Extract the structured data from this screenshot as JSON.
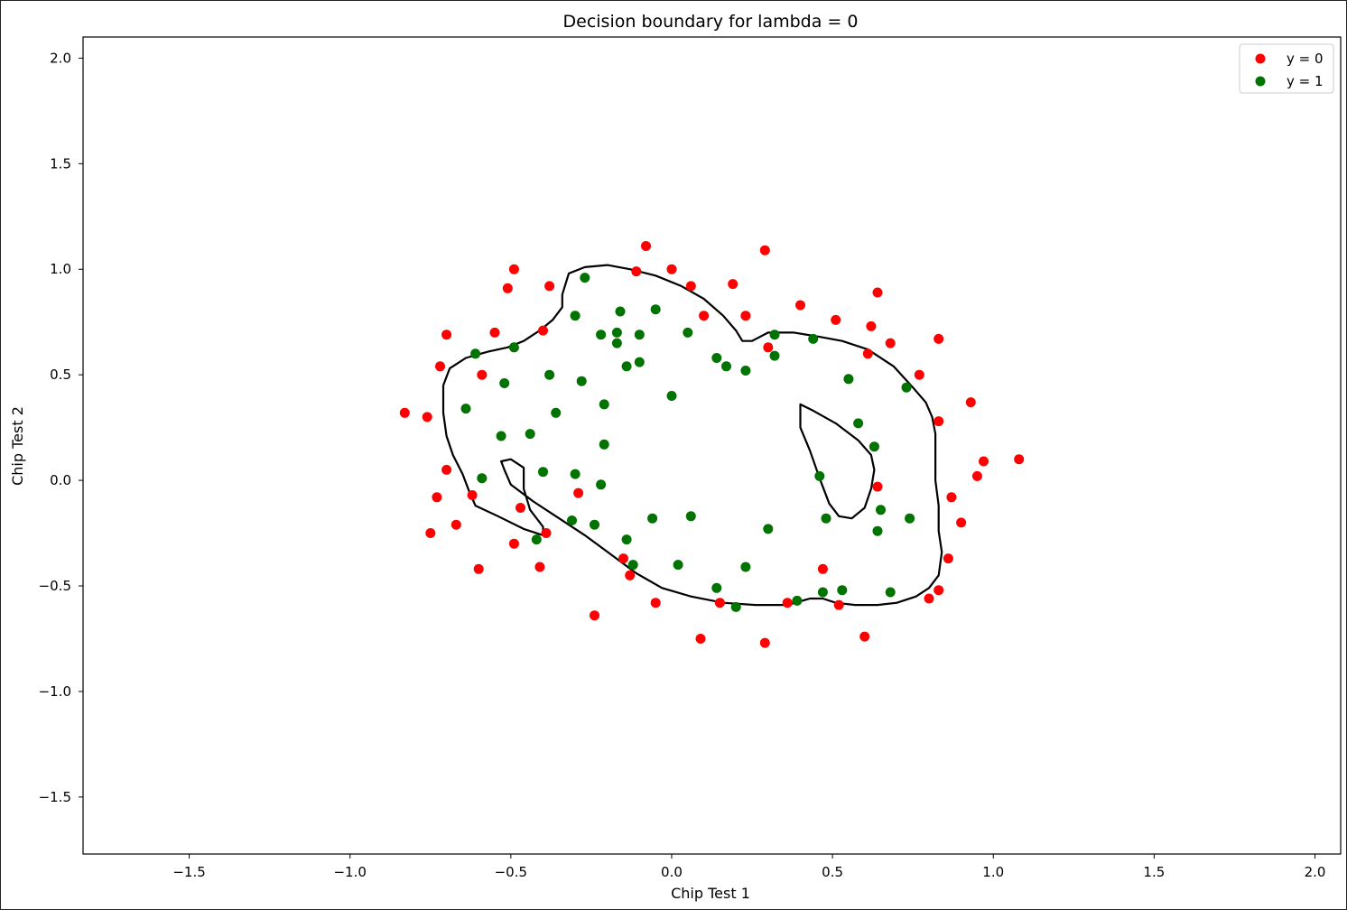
{
  "chart_data": {
    "type": "scatter",
    "title": "Decision boundary for lambda = 0",
    "xlabel": "Chip Test 1",
    "ylabel": "Chip Test 2",
    "xlim": [
      -1.83,
      2.08
    ],
    "ylim": [
      -1.77,
      2.1
    ],
    "xticks": [
      -1.5,
      -1.0,
      -0.5,
      0.0,
      0.5,
      1.0,
      1.5,
      2.0
    ],
    "xtick_labels": [
      "−1.5",
      "−1.0",
      "−0.5",
      "0.0",
      "0.5",
      "1.0",
      "1.5",
      "2.0"
    ],
    "yticks": [
      -1.5,
      -1.0,
      -0.5,
      0.0,
      0.5,
      1.0,
      1.5,
      2.0
    ],
    "ytick_labels": [
      "−1.5",
      "−1.0",
      "−0.5",
      "0.0",
      "0.5",
      "1.0",
      "1.5",
      "2.0"
    ],
    "grid": false,
    "legend_position": "top-right",
    "series": [
      {
        "name": "y = 0",
        "color": "#ff0000",
        "points": [
          [
            -0.08,
            1.11
          ],
          [
            0.29,
            1.09
          ],
          [
            -0.49,
            1.0
          ],
          [
            -0.11,
            0.99
          ],
          [
            0.0,
            1.0
          ],
          [
            -0.51,
            0.91
          ],
          [
            -0.38,
            0.92
          ],
          [
            0.06,
            0.92
          ],
          [
            0.19,
            0.93
          ],
          [
            0.64,
            0.89
          ],
          [
            0.4,
            0.83
          ],
          [
            0.1,
            0.78
          ],
          [
            0.23,
            0.78
          ],
          [
            0.51,
            0.76
          ],
          [
            0.62,
            0.73
          ],
          [
            -0.55,
            0.7
          ],
          [
            -0.4,
            0.71
          ],
          [
            -0.7,
            0.69
          ],
          [
            0.83,
            0.67
          ],
          [
            0.68,
            0.65
          ],
          [
            0.3,
            0.63
          ],
          [
            0.61,
            0.6
          ],
          [
            -0.72,
            0.54
          ],
          [
            -0.59,
            0.5
          ],
          [
            0.77,
            0.5
          ],
          [
            0.93,
            0.37
          ],
          [
            -0.83,
            0.32
          ],
          [
            -0.76,
            0.3
          ],
          [
            0.83,
            0.28
          ],
          [
            1.08,
            0.1
          ],
          [
            0.97,
            0.09
          ],
          [
            -0.7,
            0.05
          ],
          [
            0.95,
            0.02
          ],
          [
            0.64,
            -0.03
          ],
          [
            -0.29,
            -0.06
          ],
          [
            -0.62,
            -0.07
          ],
          [
            -0.73,
            -0.08
          ],
          [
            0.87,
            -0.08
          ],
          [
            -0.47,
            -0.13
          ],
          [
            -0.67,
            -0.21
          ],
          [
            0.9,
            -0.2
          ],
          [
            -0.75,
            -0.25
          ],
          [
            -0.39,
            -0.25
          ],
          [
            -0.49,
            -0.3
          ],
          [
            -0.6,
            -0.42
          ],
          [
            -0.41,
            -0.41
          ],
          [
            0.86,
            -0.37
          ],
          [
            -0.15,
            -0.37
          ],
          [
            0.47,
            -0.42
          ],
          [
            -0.13,
            -0.45
          ],
          [
            0.83,
            -0.52
          ],
          [
            0.8,
            -0.56
          ],
          [
            -0.05,
            -0.58
          ],
          [
            0.15,
            -0.58
          ],
          [
            0.36,
            -0.58
          ],
          [
            0.52,
            -0.59
          ],
          [
            -0.24,
            -0.64
          ],
          [
            0.6,
            -0.74
          ],
          [
            0.09,
            -0.75
          ],
          [
            0.29,
            -0.77
          ]
        ]
      },
      {
        "name": "y = 1",
        "color": "#007300",
        "points": [
          [
            -0.27,
            0.96
          ],
          [
            -0.05,
            0.81
          ],
          [
            -0.16,
            0.8
          ],
          [
            -0.3,
            0.78
          ],
          [
            0.05,
            0.7
          ],
          [
            -0.22,
            0.69
          ],
          [
            -0.17,
            0.7
          ],
          [
            -0.1,
            0.69
          ],
          [
            0.32,
            0.69
          ],
          [
            0.44,
            0.67
          ],
          [
            -0.17,
            0.65
          ],
          [
            -0.49,
            0.63
          ],
          [
            -0.61,
            0.6
          ],
          [
            0.32,
            0.59
          ],
          [
            0.14,
            0.58
          ],
          [
            -0.1,
            0.56
          ],
          [
            -0.14,
            0.54
          ],
          [
            0.17,
            0.54
          ],
          [
            0.23,
            0.52
          ],
          [
            -0.38,
            0.5
          ],
          [
            0.55,
            0.48
          ],
          [
            -0.28,
            0.47
          ],
          [
            -0.52,
            0.46
          ],
          [
            0.73,
            0.44
          ],
          [
            0.0,
            0.4
          ],
          [
            -0.21,
            0.36
          ],
          [
            -0.64,
            0.34
          ],
          [
            -0.36,
            0.32
          ],
          [
            0.58,
            0.27
          ],
          [
            -0.44,
            0.22
          ],
          [
            -0.53,
            0.21
          ],
          [
            -0.21,
            0.17
          ],
          [
            0.63,
            0.16
          ],
          [
            -0.4,
            0.04
          ],
          [
            -0.3,
            0.03
          ],
          [
            -0.59,
            0.01
          ],
          [
            0.46,
            0.02
          ],
          [
            -0.22,
            -0.02
          ],
          [
            0.65,
            -0.14
          ],
          [
            0.06,
            -0.17
          ],
          [
            -0.06,
            -0.18
          ],
          [
            0.48,
            -0.18
          ],
          [
            0.74,
            -0.18
          ],
          [
            -0.31,
            -0.19
          ],
          [
            -0.24,
            -0.21
          ],
          [
            0.3,
            -0.23
          ],
          [
            0.64,
            -0.24
          ],
          [
            -0.42,
            -0.28
          ],
          [
            -0.14,
            -0.28
          ],
          [
            0.02,
            -0.4
          ],
          [
            -0.12,
            -0.4
          ],
          [
            0.23,
            -0.41
          ],
          [
            0.14,
            -0.51
          ],
          [
            0.53,
            -0.52
          ],
          [
            0.47,
            -0.53
          ],
          [
            0.68,
            -0.53
          ],
          [
            0.39,
            -0.57
          ],
          [
            0.2,
            -0.6
          ]
        ]
      }
    ],
    "boundary": {
      "color": "#000000",
      "outer": [
        [
          -0.34,
          0.88
        ],
        [
          -0.32,
          0.98
        ],
        [
          -0.27,
          1.01
        ],
        [
          -0.2,
          1.02
        ],
        [
          -0.13,
          1.0
        ],
        [
          -0.05,
          0.97
        ],
        [
          0.03,
          0.92
        ],
        [
          0.1,
          0.86
        ],
        [
          0.16,
          0.78
        ],
        [
          0.2,
          0.71
        ],
        [
          0.22,
          0.66
        ],
        [
          0.25,
          0.66
        ],
        [
          0.3,
          0.7
        ],
        [
          0.38,
          0.7
        ],
        [
          0.46,
          0.68
        ],
        [
          0.53,
          0.66
        ],
        [
          0.61,
          0.62
        ],
        [
          0.69,
          0.54
        ],
        [
          0.75,
          0.44
        ],
        [
          0.79,
          0.37
        ],
        [
          0.81,
          0.3
        ],
        [
          0.82,
          0.22
        ],
        [
          0.82,
          0.12
        ],
        [
          0.82,
          0.0
        ],
        [
          0.83,
          -0.12
        ],
        [
          0.83,
          -0.24
        ],
        [
          0.84,
          -0.34
        ],
        [
          0.83,
          -0.45
        ],
        [
          0.8,
          -0.51
        ],
        [
          0.76,
          -0.55
        ],
        [
          0.7,
          -0.58
        ],
        [
          0.64,
          -0.59
        ],
        [
          0.57,
          -0.59
        ],
        [
          0.51,
          -0.58
        ],
        [
          0.47,
          -0.56
        ],
        [
          0.43,
          -0.56
        ],
        [
          0.36,
          -0.59
        ],
        [
          0.26,
          -0.59
        ],
        [
          0.16,
          -0.58
        ],
        [
          0.06,
          -0.55
        ],
        [
          -0.03,
          -0.51
        ],
        [
          -0.11,
          -0.44
        ],
        [
          -0.19,
          -0.35
        ],
        [
          -0.27,
          -0.26
        ],
        [
          -0.35,
          -0.18
        ],
        [
          -0.43,
          -0.1
        ],
        [
          -0.5,
          -0.02
        ],
        [
          -0.52,
          0.05
        ],
        [
          -0.53,
          0.09
        ],
        [
          -0.5,
          0.1
        ],
        [
          -0.46,
          0.06
        ],
        [
          -0.46,
          -0.04
        ],
        [
          -0.44,
          -0.14
        ],
        [
          -0.4,
          -0.22
        ],
        [
          -0.4,
          -0.26
        ],
        [
          -0.46,
          -0.23
        ],
        [
          -0.54,
          -0.17
        ],
        [
          -0.61,
          -0.12
        ],
        [
          -0.63,
          -0.05
        ],
        [
          -0.65,
          0.03
        ],
        [
          -0.68,
          0.12
        ],
        [
          -0.7,
          0.21
        ],
        [
          -0.71,
          0.32
        ],
        [
          -0.71,
          0.45
        ],
        [
          -0.69,
          0.53
        ],
        [
          -0.64,
          0.58
        ],
        [
          -0.57,
          0.61
        ],
        [
          -0.51,
          0.63
        ],
        [
          -0.46,
          0.66
        ],
        [
          -0.41,
          0.71
        ],
        [
          -0.37,
          0.76
        ],
        [
          -0.34,
          0.82
        ],
        [
          -0.34,
          0.88
        ]
      ],
      "inner": [
        [
          0.4,
          0.36
        ],
        [
          0.44,
          0.33
        ],
        [
          0.51,
          0.27
        ],
        [
          0.58,
          0.19
        ],
        [
          0.62,
          0.12
        ],
        [
          0.63,
          0.05
        ],
        [
          0.62,
          -0.04
        ],
        [
          0.6,
          -0.13
        ],
        [
          0.56,
          -0.18
        ],
        [
          0.52,
          -0.17
        ],
        [
          0.49,
          -0.11
        ],
        [
          0.46,
          0.01
        ],
        [
          0.43,
          0.14
        ],
        [
          0.4,
          0.25
        ],
        [
          0.4,
          0.31
        ],
        [
          0.4,
          0.36
        ]
      ]
    }
  }
}
